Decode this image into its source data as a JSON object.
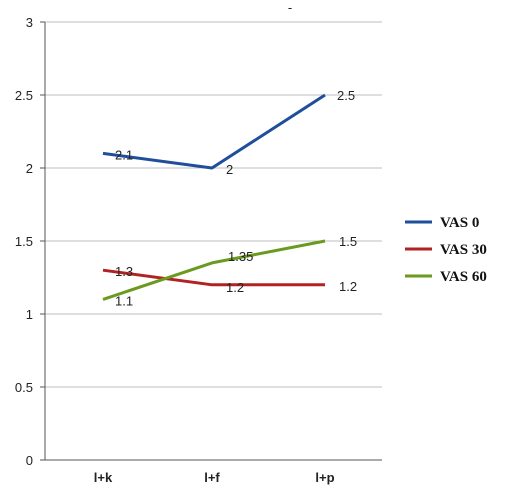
{
  "chart_data": {
    "type": "line",
    "title": "-",
    "categories": [
      "l+k",
      "l+f",
      "l+p"
    ],
    "ylim": [
      0,
      3
    ],
    "yticks": [
      "0",
      "0.5",
      "1",
      "1.5",
      "2",
      "2.5",
      "3"
    ],
    "grid": true,
    "legend_position": "right",
    "series": [
      {
        "name": "VAS 0",
        "color": "#1f4e9a",
        "values": [
          2.1,
          2,
          2.5
        ],
        "labels": [
          "2.1",
          "2",
          "2.5"
        ]
      },
      {
        "name": "VAS 30",
        "color": "#b22222",
        "values": [
          1.3,
          1.2,
          1.2
        ],
        "labels": [
          "1.3",
          "1.2",
          "1.2"
        ]
      },
      {
        "name": "VAS 60",
        "color": "#6a9a1f",
        "values": [
          1.1,
          1.35,
          1.5
        ],
        "labels": [
          "1.1",
          "1.35",
          "1.5"
        ]
      }
    ]
  }
}
